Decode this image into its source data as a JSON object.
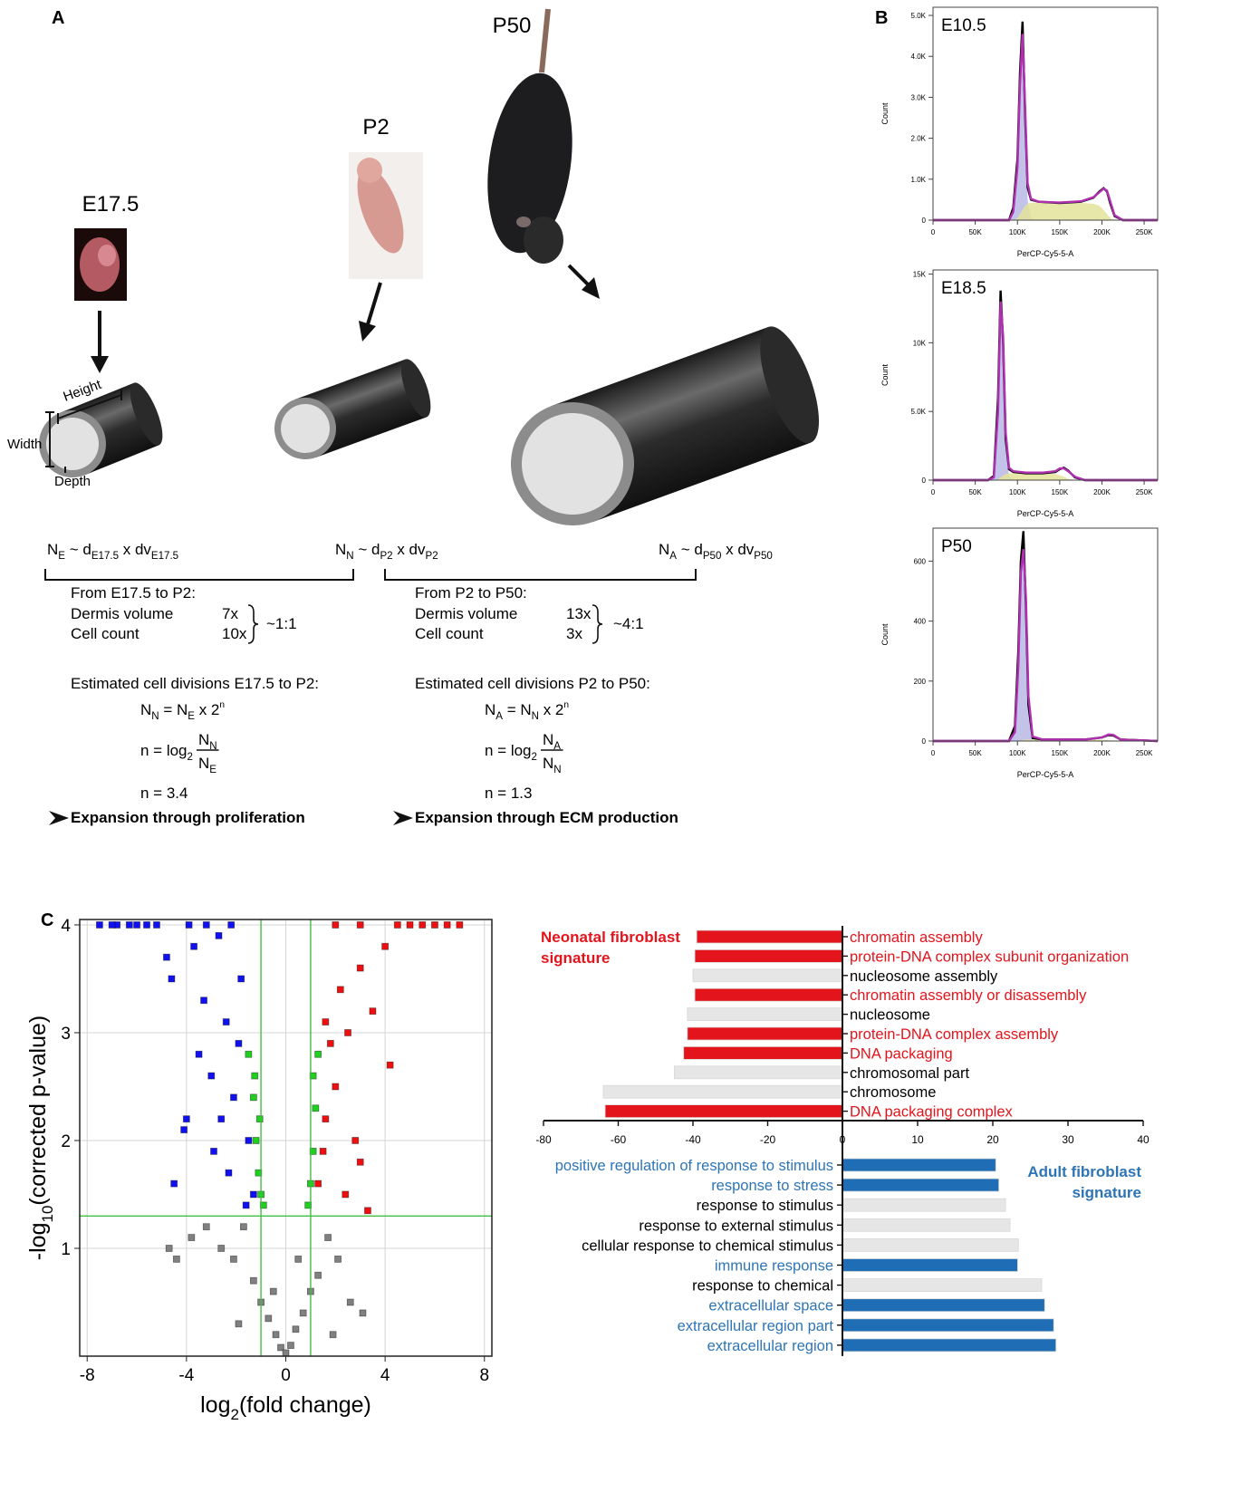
{
  "panel_labels": {
    "a": "A",
    "b": "B",
    "c": "C"
  },
  "panel_a": {
    "stages": [
      "E17.5",
      "P2",
      "P50"
    ],
    "dimensions": {
      "height": "Height",
      "width": "Width",
      "depth": "Depth"
    },
    "relations": [
      [
        {
          "t": "N"
        },
        {
          "sub": "E"
        },
        {
          "t": " ~ d"
        },
        {
          "sub": "E17.5"
        },
        {
          "t": " x dv"
        },
        {
          "sub": "E17.5"
        }
      ],
      [
        {
          "t": "N"
        },
        {
          "sub": "N"
        },
        {
          "t": " ~ d"
        },
        {
          "sub": "P2"
        },
        {
          "t": " x dv"
        },
        {
          "sub": "P2"
        }
      ],
      [
        {
          "t": "N"
        },
        {
          "sub": "A"
        },
        {
          "t": " ~ d"
        },
        {
          "sub": "P50"
        },
        {
          "t": " x dv"
        },
        {
          "sub": "P50"
        }
      ]
    ],
    "transitions": [
      {
        "heading": "From E17.5 to P2:",
        "rows": [
          {
            "label": "Dermis volume",
            "value": "7x"
          },
          {
            "label": "Cell count",
            "value": "10x"
          }
        ],
        "ratio": "~1:1",
        "divisions_heading": "Estimated cell divisions E17.5 to P2:",
        "growth": [
          {
            "t": "N"
          },
          {
            "sub": "N"
          },
          {
            "t": " = N"
          },
          {
            "sub": "E"
          },
          {
            "t": " x 2"
          },
          {
            "sup": "n"
          }
        ],
        "log_formula": {
          "lhs": [
            {
              "t": "n = log"
            },
            {
              "sub": "2"
            }
          ],
          "num": [
            {
              "t": "N"
            },
            {
              "sub": "N"
            }
          ],
          "den": [
            {
              "t": "N"
            },
            {
              "sub": "E"
            }
          ]
        },
        "result": "n = 3.4",
        "conclusion": "Expansion through proliferation"
      },
      {
        "heading": "From P2 to P50:",
        "rows": [
          {
            "label": "Dermis volume",
            "value": "13x"
          },
          {
            "label": "Cell count",
            "value": "3x"
          }
        ],
        "ratio": "~4:1",
        "divisions_heading": "Estimated cell divisions P2 to P50:",
        "growth": [
          {
            "t": "N"
          },
          {
            "sub": "A"
          },
          {
            "t": " = N"
          },
          {
            "sub": "N"
          },
          {
            "t": " x 2"
          },
          {
            "sup": "n"
          }
        ],
        "log_formula": {
          "lhs": [
            {
              "t": "n = log"
            },
            {
              "sub": "2"
            }
          ],
          "num": [
            {
              "t": "N"
            },
            {
              "sub": "A"
            }
          ],
          "den": [
            {
              "t": "N"
            },
            {
              "sub": "N"
            }
          ]
        },
        "result": "n = 1.3",
        "conclusion": "Expansion through ECM production"
      }
    ]
  },
  "chart_data": [
    {
      "type": "line",
      "label": "E10.5",
      "x_label": "PerCP-Cy5-5-A",
      "y_label": "Count",
      "x": [
        0,
        80000,
        90000,
        95000,
        100000,
        103000,
        106000,
        109000,
        112000,
        116000,
        125000,
        150000,
        175000,
        190000,
        197000,
        202000,
        206000,
        210000,
        215000,
        225000,
        266000
      ],
      "series": [
        {
          "color": "#b9b9e6",
          "fill": true,
          "values": [
            0,
            0,
            0,
            200,
            1250,
            3200,
            4400,
            2400,
            500,
            50,
            0,
            0,
            0,
            0,
            0,
            0,
            0,
            0,
            0,
            0,
            0
          ]
        },
        {
          "color": "#e3e39a",
          "fill": true,
          "values": [
            0,
            0,
            0,
            0,
            50,
            150,
            250,
            350,
            400,
            420,
            430,
            420,
            420,
            400,
            350,
            250,
            150,
            50,
            0,
            0,
            0
          ]
        },
        {
          "color": "#000000",
          "fill": false,
          "values": [
            0,
            0,
            0,
            300,
            1500,
            3600,
            4850,
            2600,
            800,
            500,
            450,
            420,
            450,
            550,
            700,
            780,
            700,
            400,
            100,
            0,
            0
          ]
        },
        {
          "color": "#b030b0",
          "fill": false,
          "values": [
            0,
            0,
            0,
            200,
            1300,
            3300,
            4550,
            2800,
            900,
            520,
            450,
            430,
            460,
            560,
            680,
            770,
            720,
            450,
            120,
            0,
            0
          ]
        }
      ],
      "xlim": [
        0,
        266000
      ],
      "xticks": [
        0,
        {
          "value": 50000,
          "label": "50K"
        },
        {
          "value": 100000,
          "label": "100K"
        },
        {
          "value": 150000,
          "label": "150K"
        },
        {
          "value": 200000,
          "label": "200K"
        },
        {
          "value": 250000,
          "label": "250K"
        }
      ],
      "ylim": [
        0,
        5200
      ],
      "yticks": [
        0,
        {
          "value": 1000,
          "label": "1.0K"
        },
        {
          "value": 2000,
          "label": "2.0K"
        },
        {
          "value": 3000,
          "label": "3.0K"
        },
        {
          "value": 4000,
          "label": "4.0K"
        },
        {
          "value": 5000,
          "label": "5.0K"
        }
      ],
      "grid": false
    },
    {
      "type": "line",
      "label": "E18.5",
      "x_label": "PerCP-Cy5-5-A",
      "y_label": "Count",
      "x": [
        0,
        65000,
        72000,
        77000,
        80000,
        83000,
        86000,
        90000,
        95000,
        110000,
        130000,
        145000,
        150000,
        155000,
        160000,
        168000,
        180000,
        266000
      ],
      "series": [
        {
          "color": "#b9b9e6",
          "fill": true,
          "values": [
            0,
            0,
            150,
            4800,
            12500,
            9500,
            2500,
            300,
            0,
            0,
            0,
            0,
            0,
            0,
            0,
            0,
            0,
            0
          ]
        },
        {
          "color": "#e3e39a",
          "fill": true,
          "values": [
            0,
            0,
            0,
            50,
            200,
            350,
            450,
            500,
            500,
            500,
            500,
            450,
            350,
            250,
            100,
            0,
            0,
            0
          ]
        },
        {
          "color": "#000000",
          "fill": false,
          "values": [
            0,
            0,
            300,
            6000,
            13800,
            10000,
            3000,
            800,
            600,
            500,
            500,
            600,
            800,
            900,
            700,
            200,
            0,
            0
          ]
        },
        {
          "color": "#b030b0",
          "fill": false,
          "values": [
            0,
            0,
            200,
            5000,
            13000,
            10500,
            3500,
            900,
            650,
            550,
            550,
            650,
            850,
            850,
            650,
            250,
            0,
            0
          ]
        }
      ],
      "xlim": [
        0,
        266000
      ],
      "xticks": [
        0,
        {
          "value": 50000,
          "label": "50K"
        },
        {
          "value": 100000,
          "label": "100K"
        },
        {
          "value": 150000,
          "label": "150K"
        },
        {
          "value": 200000,
          "label": "200K"
        },
        {
          "value": 250000,
          "label": "250K"
        }
      ],
      "ylim": [
        0,
        15300
      ],
      "yticks": [
        0,
        {
          "value": 5000,
          "label": "5.0K"
        },
        {
          "value": 10000,
          "label": "10K"
        },
        {
          "value": 15000,
          "label": "15K"
        }
      ],
      "grid": false
    },
    {
      "type": "line",
      "label": "P50",
      "x_label": "PerCP-Cy5-5-A",
      "y_label": "Count",
      "x": [
        0,
        90000,
        97000,
        101000,
        104000,
        107000,
        110000,
        113000,
        118000,
        130000,
        180000,
        200000,
        208000,
        214000,
        222000,
        266000
      ],
      "series": [
        {
          "color": "#b9b9e6",
          "fill": true,
          "values": [
            0,
            0,
            25,
            240,
            540,
            620,
            440,
            100,
            5,
            0,
            0,
            0,
            0,
            0,
            0,
            0
          ]
        },
        {
          "color": "#e3e39a",
          "fill": true,
          "values": [
            0,
            0,
            0,
            0,
            2,
            4,
            5,
            5,
            5,
            5,
            5,
            4,
            3,
            2,
            0,
            0
          ]
        },
        {
          "color": "#000000",
          "fill": false,
          "values": [
            0,
            0,
            50,
            300,
            600,
            700,
            450,
            120,
            10,
            5,
            5,
            12,
            20,
            18,
            5,
            0
          ]
        },
        {
          "color": "#b030b0",
          "fill": false,
          "values": [
            0,
            0,
            30,
            250,
            560,
            640,
            480,
            150,
            15,
            5,
            5,
            12,
            22,
            20,
            5,
            0
          ]
        }
      ],
      "xlim": [
        0,
        266000
      ],
      "xticks": [
        0,
        {
          "value": 50000,
          "label": "50K"
        },
        {
          "value": 100000,
          "label": "100K"
        },
        {
          "value": 150000,
          "label": "150K"
        },
        {
          "value": 200000,
          "label": "200K"
        },
        {
          "value": 250000,
          "label": "250K"
        }
      ],
      "ylim": [
        0,
        710
      ],
      "yticks": [
        0,
        200,
        400,
        600
      ],
      "grid": false
    },
    {
      "type": "scatter",
      "x_label": [
        {
          "t": "log"
        },
        {
          "sub": "2"
        },
        {
          "t": "(fold change)"
        }
      ],
      "y_label": [
        {
          "t": "-log"
        },
        {
          "sub": "10"
        },
        {
          "t": "(corrected p-value)"
        }
      ],
      "series": [
        {
          "color": "#1010f0",
          "x": [
            -7.5,
            -6.8,
            -6,
            -5.2,
            -4.8,
            -4.5,
            -4,
            -3.7,
            -3.3,
            -3,
            -2.7,
            -2.4,
            -2.1,
            -1.8,
            -1.5,
            -1.3,
            -4.6,
            -4.1,
            -3.5,
            -2.9,
            -2.3,
            -1.9,
            -1.6,
            -3.9,
            -2.6,
            -7,
            -6.3,
            -5.6,
            -3.2,
            -2.2
          ],
          "values": [
            4,
            4,
            4,
            4,
            3.7,
            1.6,
            2.2,
            3.8,
            3.3,
            2.6,
            3.9,
            3.1,
            2.4,
            3.5,
            2.0,
            1.5,
            3.5,
            2.1,
            2.8,
            1.9,
            1.7,
            2.9,
            1.4,
            4,
            2.2,
            4,
            4,
            4,
            4,
            4
          ]
        },
        {
          "color": "#20d020",
          "x": [
            -1.5,
            -1.3,
            -1.2,
            -1.1,
            -1.0,
            -0.9,
            0.9,
            1.0,
            1.1,
            1.2,
            1.3,
            1.1,
            -1.05,
            -1.25
          ],
          "values": [
            2.8,
            2.4,
            2.0,
            1.7,
            1.5,
            1.4,
            1.4,
            1.6,
            1.9,
            2.3,
            2.8,
            2.6,
            2.2,
            2.6
          ]
        },
        {
          "color": "#ee1010",
          "x": [
            7,
            6.5,
            6,
            5.5,
            5,
            4.5,
            4,
            3.5,
            3,
            2.5,
            2,
            1.6,
            1.3,
            3.3,
            2.8,
            2.2,
            1.8,
            4.2,
            3.0,
            2.4,
            1.5,
            2,
            3,
            1.6
          ],
          "values": [
            4,
            4,
            4,
            4,
            4,
            4,
            3.8,
            3.2,
            3.6,
            3.0,
            2.5,
            2.2,
            1.6,
            1.35,
            2.0,
            3.4,
            2.9,
            2.7,
            1.8,
            1.5,
            1.9,
            4,
            4,
            3.1
          ]
        },
        {
          "color": "#808080",
          "x": [
            -4.7,
            -4.4,
            -3.8,
            -3.2,
            -2.6,
            -2.1,
            -1.7,
            -1.3,
            -1.0,
            -0.7,
            -0.4,
            -0.2,
            0,
            0.2,
            0.4,
            0.7,
            1.0,
            1.3,
            1.7,
            2.1,
            2.6,
            3.1,
            -1.9,
            1.9,
            -0.5,
            0.5
          ],
          "values": [
            1.0,
            0.9,
            1.1,
            1.2,
            1.0,
            0.9,
            1.2,
            0.7,
            0.5,
            0.35,
            0.2,
            0.08,
            0.03,
            0.1,
            0.25,
            0.4,
            0.6,
            0.75,
            1.1,
            0.9,
            0.5,
            0.4,
            0.3,
            0.2,
            0.6,
            0.9
          ]
        }
      ],
      "thresholds": {
        "x": [
          -1,
          1
        ],
        "y": 1.3,
        "color": "#40c040"
      },
      "xlim": [
        -8.3,
        8.3
      ],
      "xticks": [
        -8,
        -4,
        0,
        4,
        8
      ],
      "ylim": [
        0,
        4.05
      ],
      "yticks": [
        1,
        2,
        3,
        4
      ],
      "grid": true
    },
    {
      "type": "bar",
      "orientation": "horizontal",
      "title": [
        "Neonatal fibroblast",
        "signature"
      ],
      "title_color": "#e3141c",
      "categories": [
        "chromatin assembly",
        "protein-DNA complex subunit organization",
        "nucleosome assembly",
        "chromatin assembly or disassembly",
        "nucleosome",
        "protein-DNA complex assembly",
        "DNA packaging",
        "chromosomal part",
        "chromosome",
        "DNA packaging complex"
      ],
      "values": [
        -39,
        -39.5,
        -40,
        -39.5,
        -41.5,
        -41.5,
        -42.5,
        -45,
        -64,
        -63.5
      ],
      "colors": [
        "#e3141c",
        "#e3141c",
        "#e6e6e6",
        "#e3141c",
        "#e6e6e6",
        "#e3141c",
        "#e3141c",
        "#e6e6e6",
        "#e6e6e6",
        "#e3141c"
      ],
      "label_colors": [
        "#e3141c",
        "#e3141c",
        "#000000",
        "#e3141c",
        "#000000",
        "#e3141c",
        "#e3141c",
        "#000000",
        "#000000",
        "#e3141c"
      ],
      "xlim": [
        -80,
        0
      ],
      "xticks": [
        -80,
        -60,
        -40,
        -20,
        0
      ]
    },
    {
      "type": "bar",
      "orientation": "horizontal",
      "title": [
        "Adult fibroblast",
        "signature"
      ],
      "title_color": "#2e75b6",
      "categories": [
        "positive regulation of response to stimulus",
        "response to stress",
        "response to stimulus",
        "response to external stimulus",
        "cellular response to chemical stimulus",
        "immune response",
        "response to chemical",
        "extracellular space",
        "extracellular region part",
        "extracellular region"
      ],
      "values": [
        20.4,
        20.8,
        21.7,
        22.3,
        23.4,
        23.3,
        26.5,
        26.9,
        28.1,
        28.4
      ],
      "colors": [
        "#1f6db5",
        "#1f6db5",
        "#e6e6e6",
        "#e6e6e6",
        "#e6e6e6",
        "#1f6db5",
        "#e6e6e6",
        "#1f6db5",
        "#1f6db5",
        "#1f6db5"
      ],
      "label_colors": [
        "#2e75b6",
        "#2e75b6",
        "#000000",
        "#000000",
        "#000000",
        "#2e75b6",
        "#000000",
        "#2e75b6",
        "#2e75b6",
        "#2e75b6"
      ],
      "xlim": [
        0,
        40
      ],
      "xticks": [
        10,
        20,
        30,
        40
      ]
    }
  ]
}
